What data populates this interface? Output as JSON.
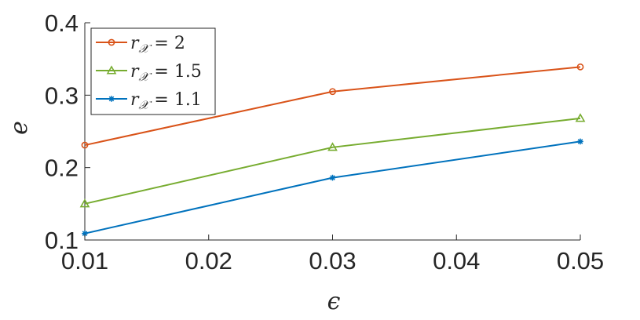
{
  "chart_data": {
    "type": "line",
    "x": [
      0.01,
      0.03,
      0.05
    ],
    "xticks": [
      "0.01",
      "0.02",
      "0.03",
      "0.04",
      "0.05"
    ],
    "xtick_values": [
      0.01,
      0.02,
      0.03,
      0.04,
      0.05
    ],
    "yticks": [
      "0.1",
      "0.2",
      "0.3",
      "0.4"
    ],
    "ytick_values": [
      0.1,
      0.2,
      0.3,
      0.4
    ],
    "xlim": [
      0.01,
      0.05
    ],
    "ylim": [
      0.1,
      0.4
    ],
    "xlabel": "ϵ",
    "ylabel": "e",
    "grid": false,
    "legend_position": "top-left",
    "series": [
      {
        "name": "r𝒳 = 2",
        "name_var": "r",
        "name_sub": "𝒳",
        "name_rest": " = 2",
        "values": [
          0.231,
          0.305,
          0.339
        ],
        "color": "#d95319",
        "marker": "circle"
      },
      {
        "name": "r𝒳 = 1.5",
        "name_var": "r",
        "name_sub": "𝒳",
        "name_rest": " = 1.5",
        "values": [
          0.15,
          0.228,
          0.268
        ],
        "color": "#77ac30",
        "marker": "triangle"
      },
      {
        "name": "r𝒳 = 1.1",
        "name_var": "r",
        "name_sub": "𝒳",
        "name_rest": " = 1.1",
        "values": [
          0.109,
          0.186,
          0.236
        ],
        "color": "#0072bd",
        "marker": "asterisk"
      }
    ]
  }
}
